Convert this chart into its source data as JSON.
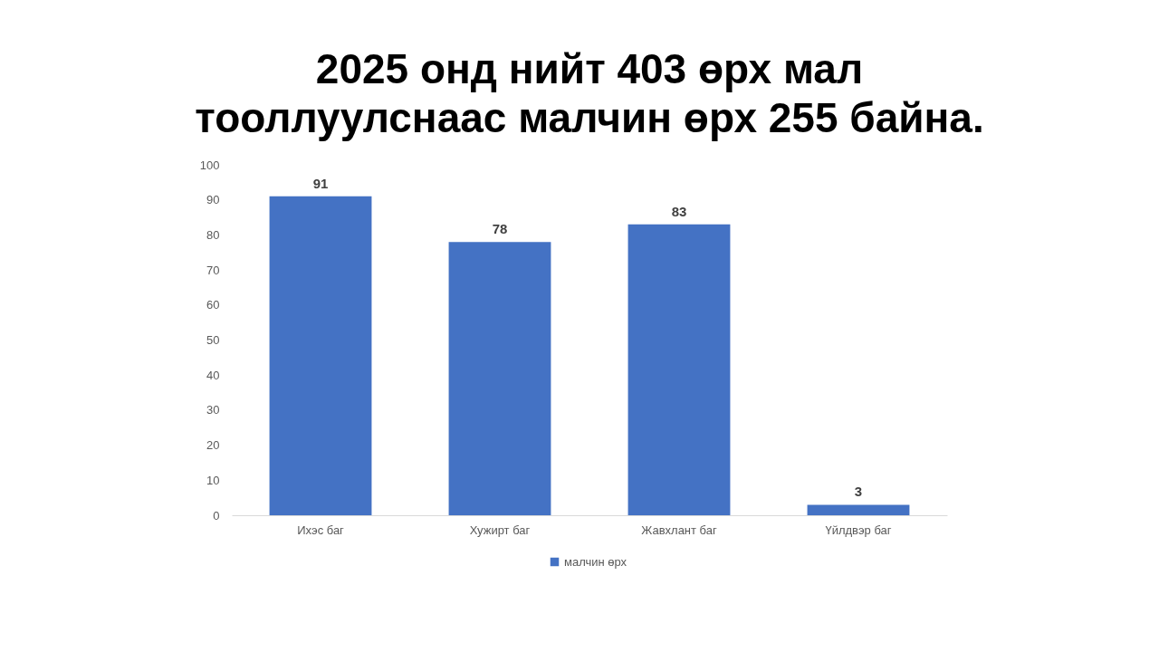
{
  "chart_data": {
    "type": "bar",
    "title": "2025 онд нийт 403 өрх мал\nтооллуулснаас малчин өрх 255 байна.",
    "categories": [
      "Ихэс баг",
      "Хужирт баг",
      "Жавхлант баг",
      "Үйлдвэр баг"
    ],
    "series": [
      {
        "name": "малчин өрх",
        "color": "#4472c4",
        "values": [
          91,
          78,
          83,
          3
        ]
      }
    ],
    "ylim": [
      0,
      100
    ],
    "yticks": [
      0,
      10,
      20,
      30,
      40,
      50,
      60,
      70,
      80,
      90,
      100
    ],
    "grid": false,
    "legend": "bottom",
    "data_labels": true
  }
}
